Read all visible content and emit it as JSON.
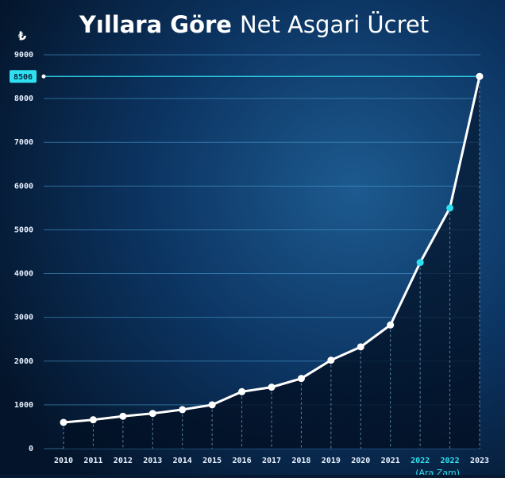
{
  "chart_data": {
    "type": "line",
    "title": [
      "Yıllara Göre",
      "Net Asgari Ücret"
    ],
    "y_unit": "₺",
    "categories": [
      "2010",
      "2011",
      "2012",
      "2013",
      "2014",
      "2015",
      "2016",
      "2017",
      "2018",
      "2019",
      "2020",
      "2021",
      "2022",
      "2022",
      "2023"
    ],
    "values": [
      599,
      659,
      740,
      804,
      891,
      1001,
      1301,
      1404,
      1603,
      2021,
      2325,
      2826,
      4253,
      5500,
      8506
    ],
    "annotation": {
      "index": 12,
      "text": "(Ara Zam)"
    },
    "color": "#ffffff",
    "highlight_color": "#2fe0f0",
    "highlight_indices": [
      12,
      13
    ],
    "highlight_value_index": 14,
    "ylim": [
      0,
      9000
    ],
    "yticks": [
      0,
      1000,
      2000,
      3000,
      4000,
      5000,
      6000,
      7000,
      8000,
      9000
    ],
    "grid": true
  }
}
